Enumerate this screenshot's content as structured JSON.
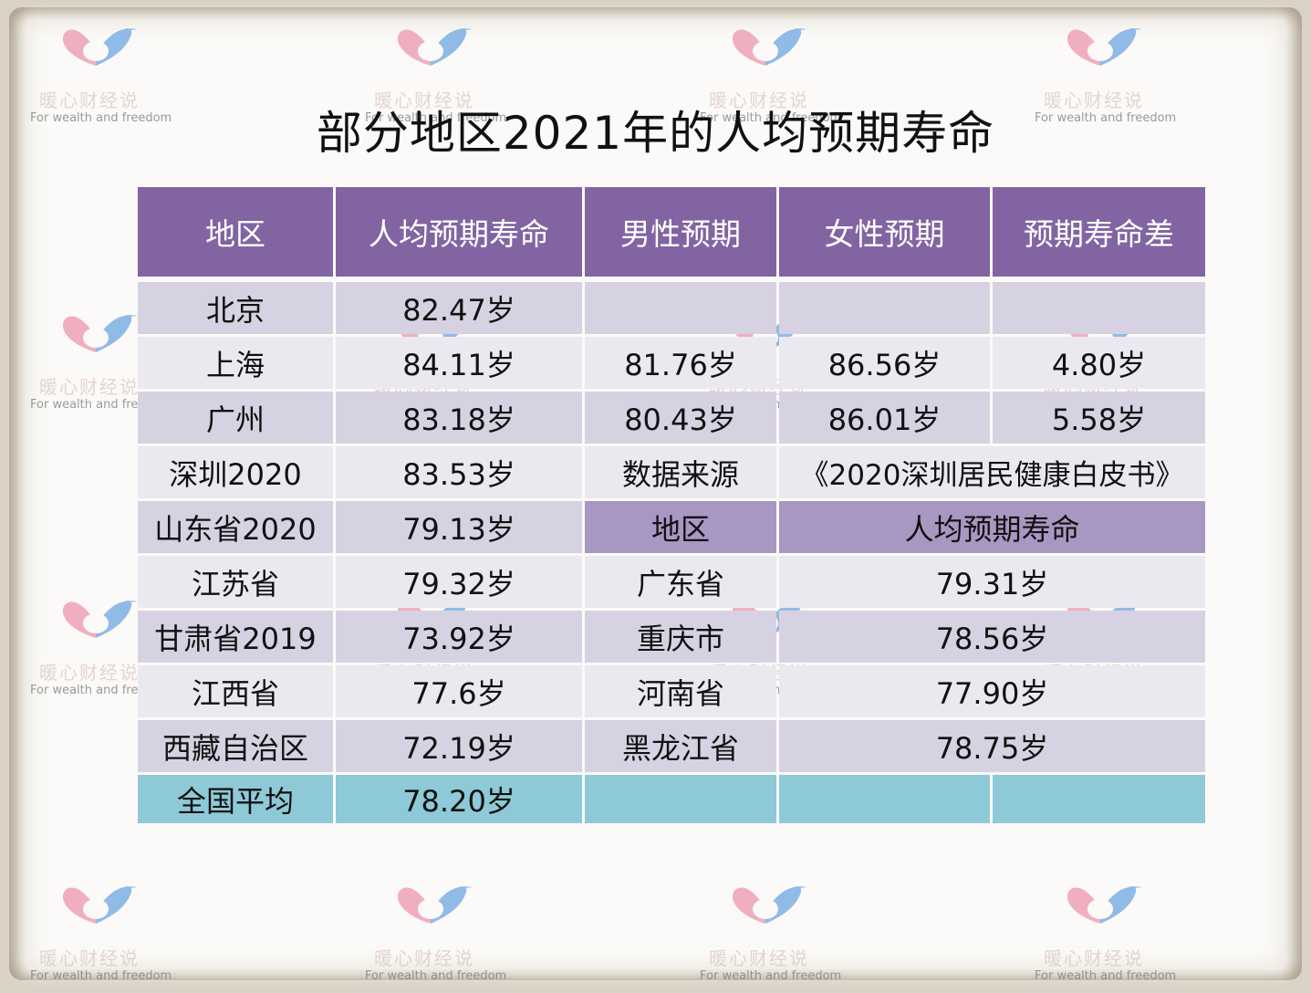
{
  "title": "部分地区2021年的人均预期寿命",
  "watermark": {
    "cn": "暖心财经说",
    "en": "For wealth and freedom",
    "icon": "heart-logo-icon"
  },
  "colors": {
    "header": "#8264a2",
    "row_odd": "#d7d2e2",
    "row_even": "#ebe9f0",
    "sub_header": "#a997c3",
    "average_row": "#8ec9d8"
  },
  "table": {
    "headers": [
      "地区",
      "人均预期寿命",
      "男性预期",
      "女性预期",
      "预期寿命差"
    ],
    "rows": {
      "beijing": {
        "region": "北京",
        "life": "82.47岁",
        "male": "",
        "female": "",
        "diff": ""
      },
      "shanghai": {
        "region": "上海",
        "life": "84.11岁",
        "male": "81.76岁",
        "female": "86.56岁",
        "diff": "4.80岁"
      },
      "guangzhou": {
        "region": "广州",
        "life": "83.18岁",
        "male": "80.43岁",
        "female": "86.01岁",
        "diff": "5.58岁"
      },
      "shenzhen": {
        "region": "深圳2020",
        "life": "83.53岁",
        "source_label": "数据来源",
        "source": "《2020深圳居民健康白皮书》"
      },
      "shandong": {
        "region": "山东省2020",
        "life": "79.13岁",
        "sub_region_header": "地区",
        "sub_life_header": "人均预期寿命"
      },
      "jiangsu": {
        "region": "江苏省",
        "life": "79.32岁",
        "region2": "广东省",
        "life2": "79.31岁"
      },
      "gansu": {
        "region": "甘肃省2019",
        "life": "73.92岁",
        "region2": "重庆市",
        "life2": "78.56岁"
      },
      "jiangxi": {
        "region": "江西省",
        "life": "77.6岁",
        "region2": "河南省",
        "life2": "77.90岁"
      },
      "xizang": {
        "region": "西藏自治区",
        "life": "72.19岁",
        "region2": "黑龙江省",
        "life2": "78.75岁"
      },
      "national": {
        "region": "全国平均",
        "life": "78.20岁"
      }
    }
  }
}
